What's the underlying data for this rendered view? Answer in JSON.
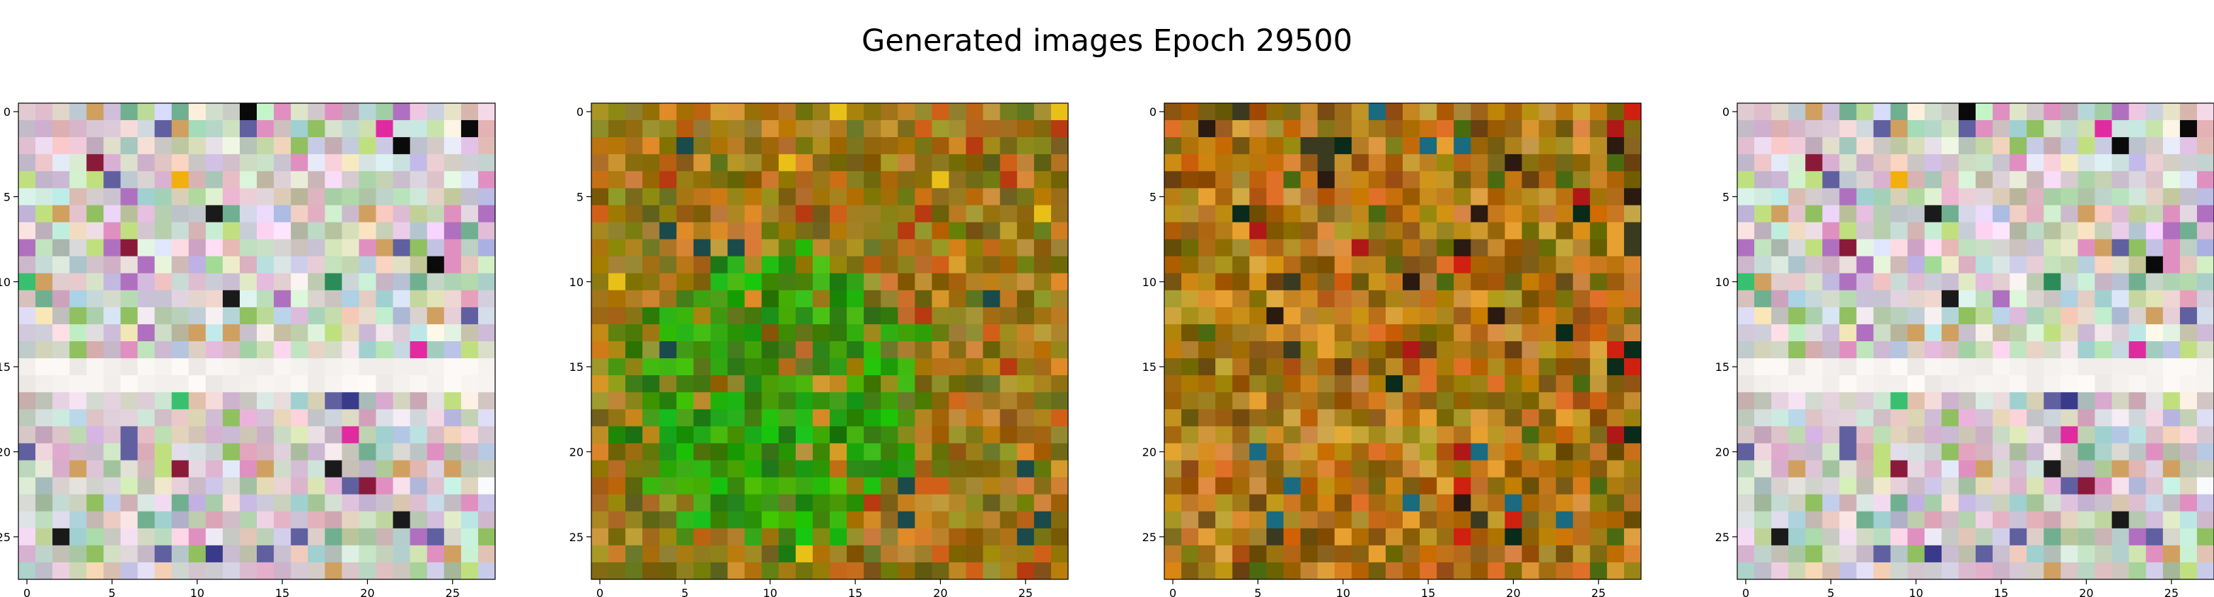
{
  "title": "Generated images Epoch 29500",
  "chart_data": {
    "type": "heatmap",
    "grid_size": 28,
    "panel_count": 4,
    "x_ticks": [
      0,
      5,
      10,
      15,
      20,
      25
    ],
    "y_ticks": [
      0,
      5,
      10,
      15,
      20,
      25
    ],
    "xlim": [
      -0.5,
      27.5
    ],
    "ylim": [
      27.5,
      -0.5
    ],
    "grid": false,
    "panels": [
      {
        "style": "pastel",
        "seed": 11
      },
      {
        "style": "green-amber",
        "seed": 29
      },
      {
        "style": "orange-amber",
        "seed": 47
      },
      {
        "style": "pastel",
        "seed": 11
      }
    ]
  }
}
